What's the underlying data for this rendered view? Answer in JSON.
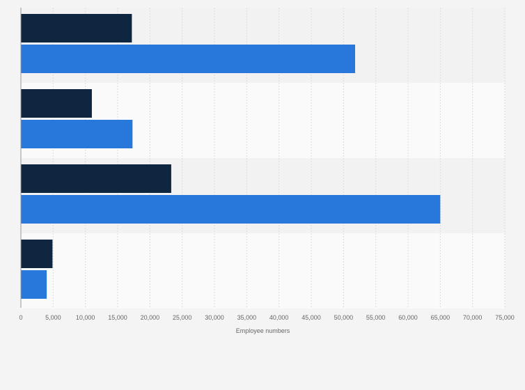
{
  "chart_data": {
    "type": "bar",
    "orientation": "horizontal",
    "title": "",
    "xlabel": "Employee numbers",
    "ylabel": "",
    "xlim": [
      0,
      75000
    ],
    "x_ticks": [
      0,
      5000,
      10000,
      15000,
      20000,
      25000,
      30000,
      35000,
      40000,
      45000,
      50000,
      55000,
      60000,
      65000,
      70000,
      75000
    ],
    "x_tick_labels": [
      "0",
      "5,000",
      "10,000",
      "15,000",
      "20,000",
      "25,000",
      "30,000",
      "35,000",
      "40,000",
      "45,000",
      "50,000",
      "55,000",
      "60,000",
      "65,000",
      "70,000",
      "75,000"
    ],
    "grid": true,
    "legend": "none",
    "categories": [
      "",
      "",
      "",
      ""
    ],
    "series": [
      {
        "name": "",
        "color": "#0f2640",
        "values": [
          17200,
          11000,
          23300,
          4900
        ]
      },
      {
        "name": "",
        "color": "#2878dc",
        "values": [
          51800,
          17300,
          65000,
          4000
        ]
      }
    ]
  },
  "colors": {
    "background": "#f4f4f4",
    "band_dark": "#f2f2f2",
    "band_light": "#fafafa",
    "grid": "#dcdcdc",
    "axis": "#999999"
  }
}
